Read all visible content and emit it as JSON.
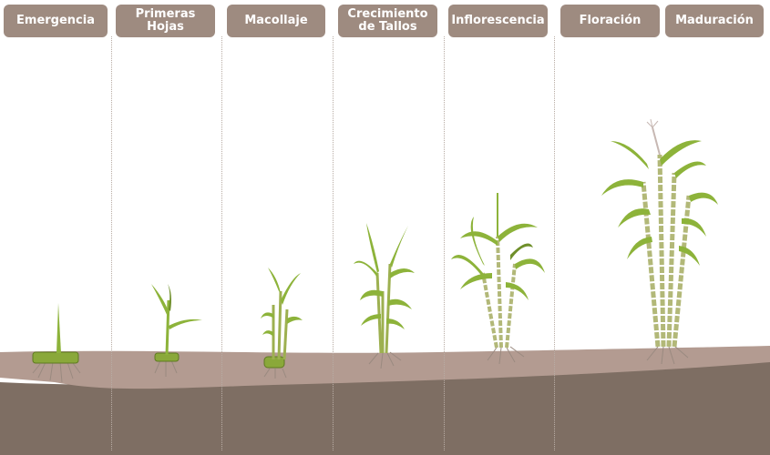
{
  "stages": [
    {
      "label": "Emergencia"
    },
    {
      "label": "Primeras Hojas"
    },
    {
      "label": "Macollaje"
    },
    {
      "label": "Crecimiento de Tallos"
    },
    {
      "label": "Inflorescencia"
    },
    {
      "label": "Floración"
    },
    {
      "label": "Maduración"
    }
  ],
  "colors": {
    "label_bg": "#9e8b80",
    "label_text": "#ffffff",
    "topsoil": "#b39b91",
    "subsoil": "#7e6e63",
    "leaf": "#8db33a",
    "leaf_dark": "#6f8f2a",
    "stalk": "#a9b46a",
    "root": "#9a8a80"
  },
  "icons": [
    "sugarcane-sett",
    "sprout",
    "sugarcane-plant",
    "roots"
  ]
}
